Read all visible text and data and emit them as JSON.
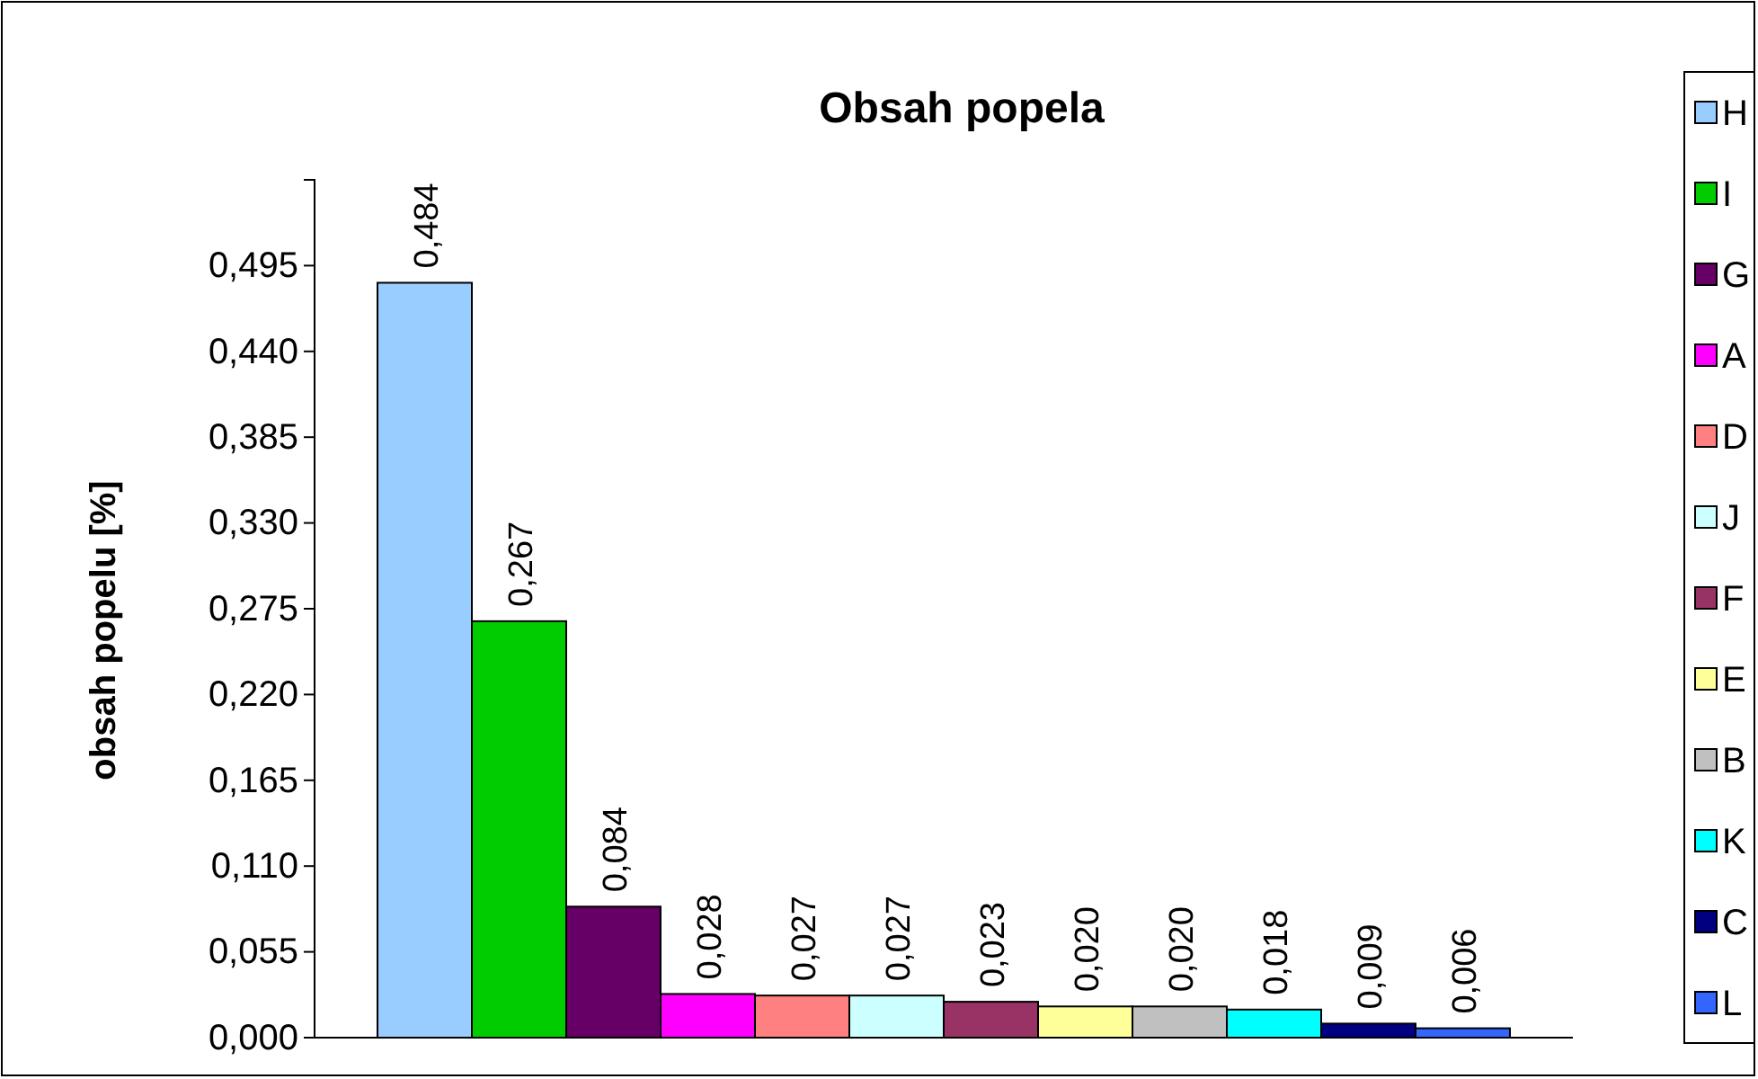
{
  "chart_data": {
    "type": "bar",
    "title": "Obsah popela",
    "ylabel": "obsah popelu [%]",
    "categories": [
      null
    ],
    "series": [
      {
        "name": "H",
        "color": "#99ccff",
        "values": [
          0.484
        ],
        "value_labels": [
          "0,484"
        ]
      },
      {
        "name": "I",
        "color": "#00cc00",
        "values": [
          0.267
        ],
        "value_labels": [
          "0,267"
        ]
      },
      {
        "name": "G",
        "color": "#660066",
        "values": [
          0.084
        ],
        "value_labels": [
          "0,084"
        ]
      },
      {
        "name": "A",
        "color": "#ff00ff",
        "values": [
          0.028
        ],
        "value_labels": [
          "0,028"
        ]
      },
      {
        "name": "D",
        "color": "#ff8080",
        "values": [
          0.027
        ],
        "value_labels": [
          "0,027"
        ]
      },
      {
        "name": "J",
        "color": "#ccffff",
        "values": [
          0.027
        ],
        "value_labels": [
          "0,027"
        ]
      },
      {
        "name": "F",
        "color": "#993366",
        "values": [
          0.023
        ],
        "value_labels": [
          "0,023"
        ]
      },
      {
        "name": "E",
        "color": "#ffff99",
        "values": [
          0.02
        ],
        "value_labels": [
          "0,020"
        ]
      },
      {
        "name": "B",
        "color": "#c0c0c0",
        "values": [
          0.02
        ],
        "value_labels": [
          "0,020"
        ]
      },
      {
        "name": "K",
        "color": "#00ffff",
        "values": [
          0.018
        ],
        "value_labels": [
          "0,018"
        ]
      },
      {
        "name": "C",
        "color": "#000080",
        "values": [
          0.009
        ],
        "value_labels": [
          "0,009"
        ]
      },
      {
        "name": "L",
        "color": "#3366ff",
        "values": [
          0.006
        ],
        "value_labels": [
          "0,006"
        ]
      }
    ],
    "ylim": [
      0,
      0.55
    ],
    "yticks": [
      {
        "value": 0,
        "label": "0,000"
      },
      {
        "value": 0.055,
        "label": "0,055"
      },
      {
        "value": 0.11,
        "label": "0,110"
      },
      {
        "value": 0.165,
        "label": "0,165"
      },
      {
        "value": 0.22,
        "label": "0,220"
      },
      {
        "value": 0.275,
        "label": "0,275"
      },
      {
        "value": 0.33,
        "label": "0,330"
      },
      {
        "value": 0.385,
        "label": "0,385"
      },
      {
        "value": 0.44,
        "label": "0,440"
      },
      {
        "value": 0.495,
        "label": "0,495"
      }
    ],
    "grid": false,
    "legend": "right"
  }
}
